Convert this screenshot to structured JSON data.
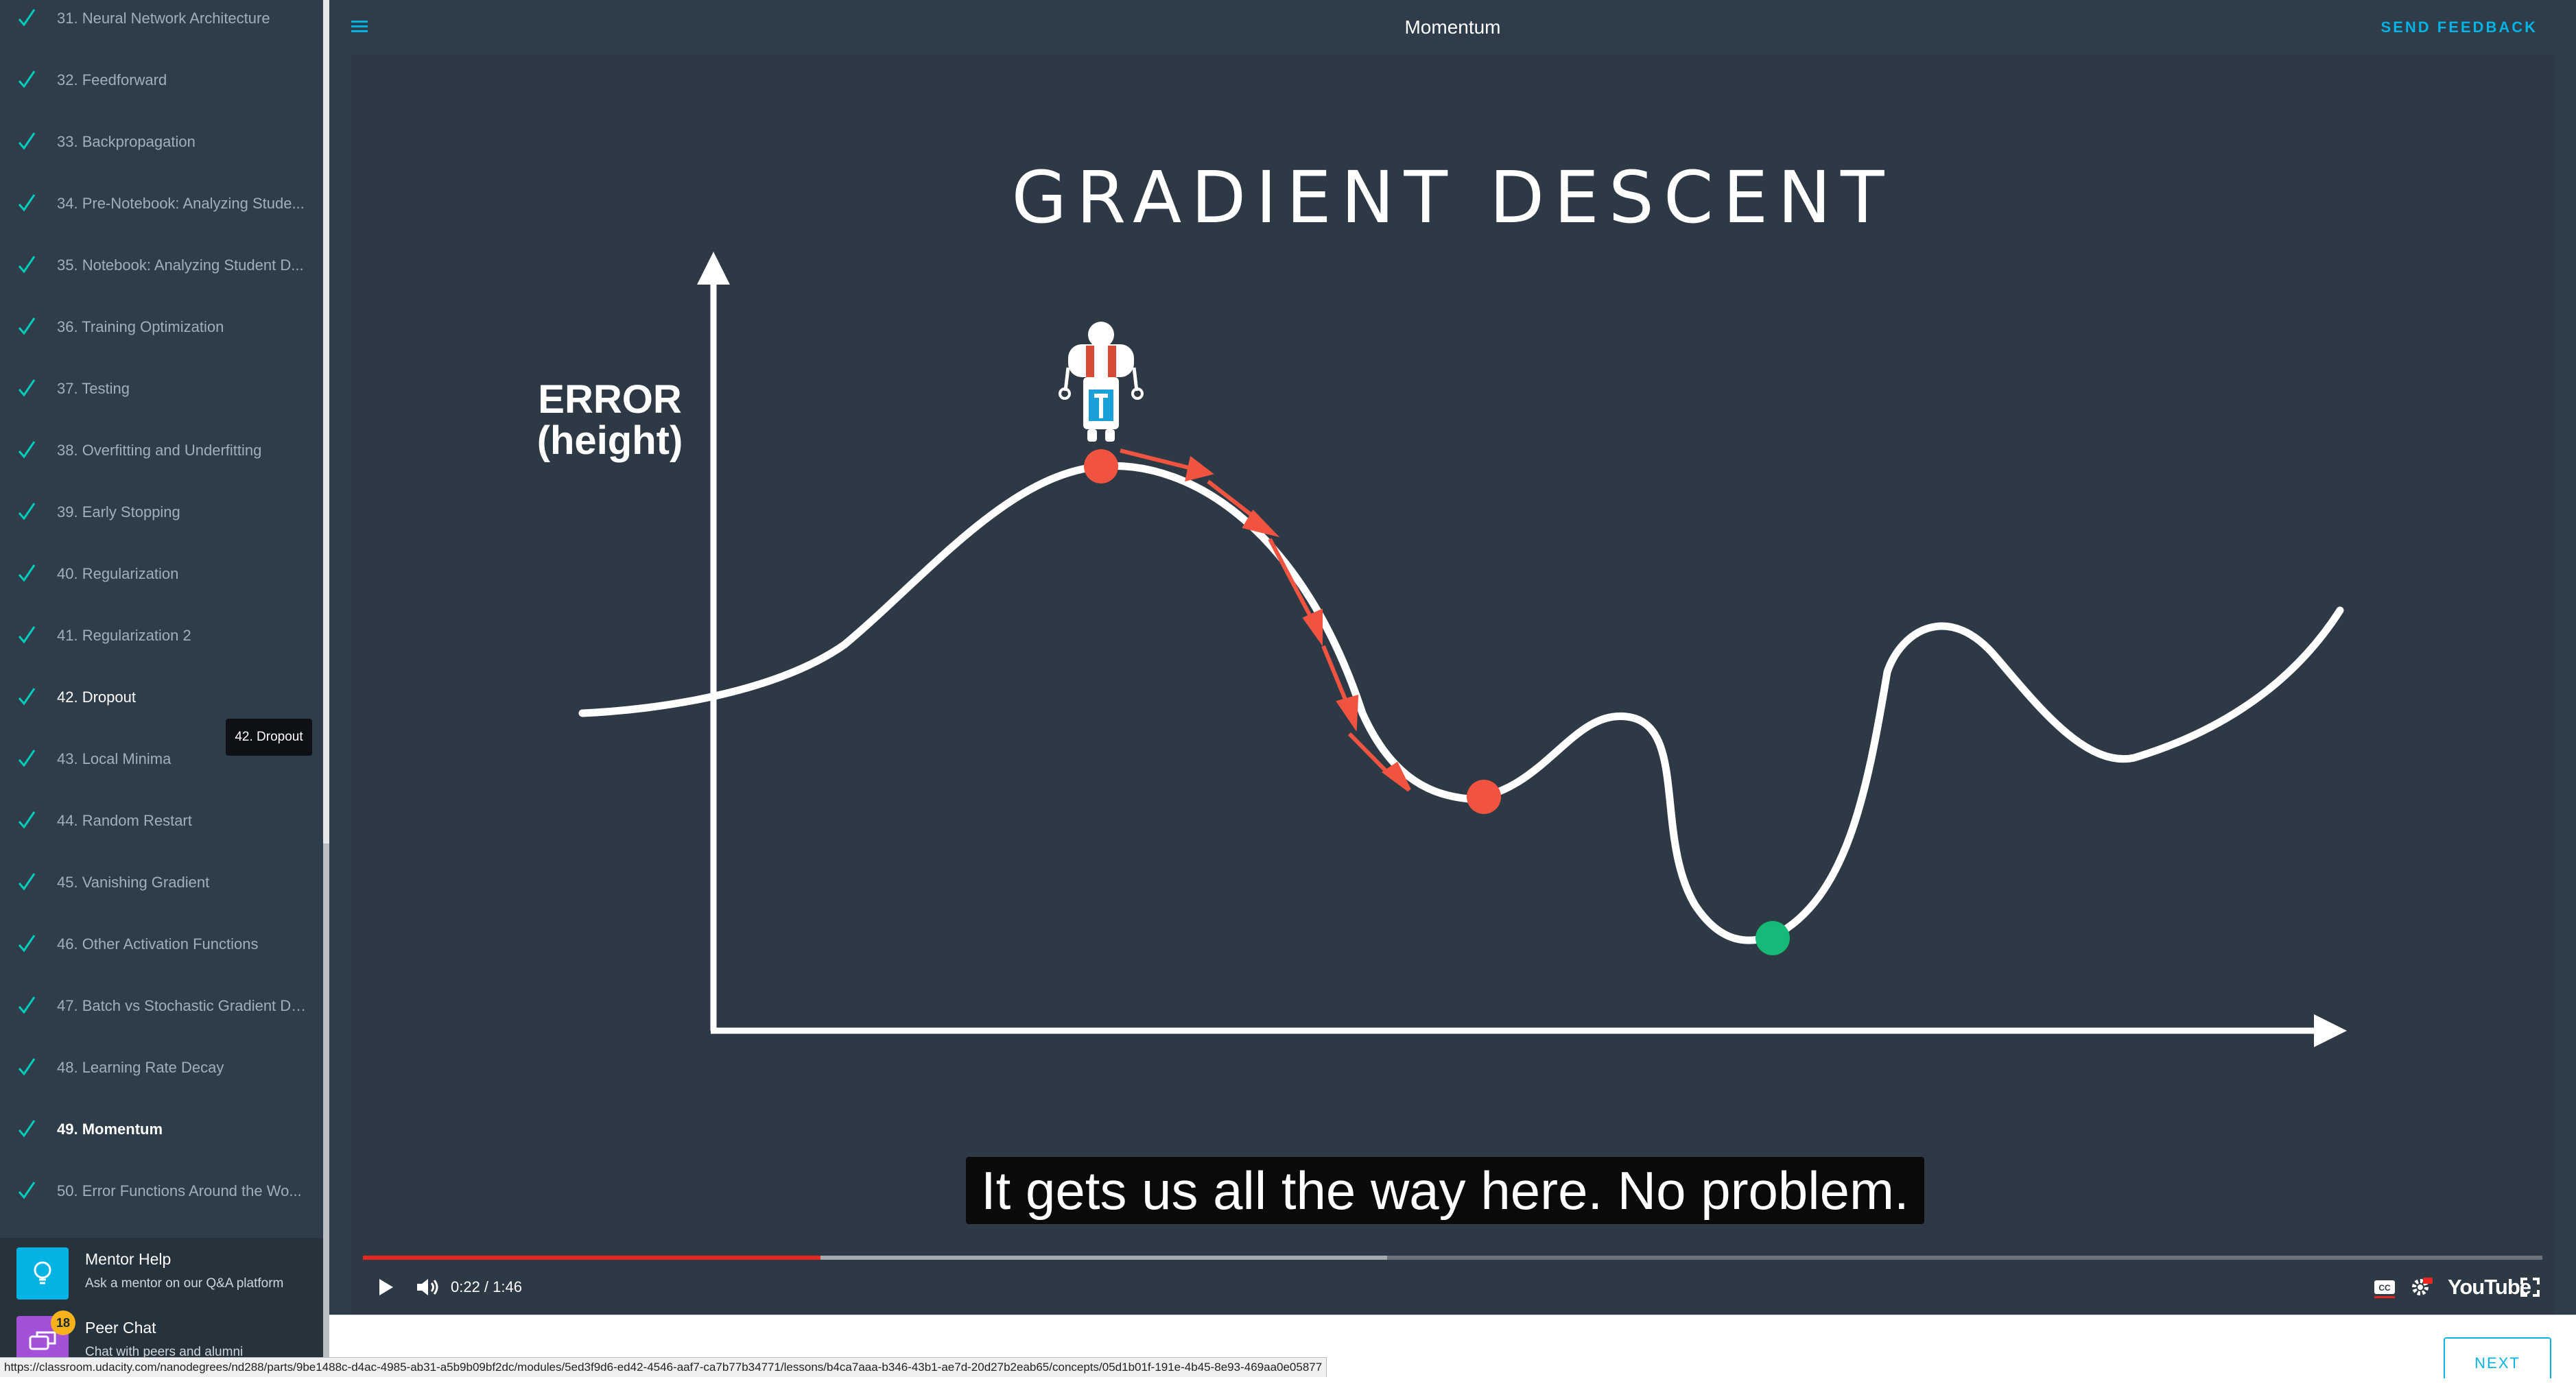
{
  "sidebar": {
    "lessons": [
      {
        "label": "31. Neural Network Architecture",
        "state": "done"
      },
      {
        "label": "32. Feedforward",
        "state": "done"
      },
      {
        "label": "33. Backpropagation",
        "state": "done"
      },
      {
        "label": "34. Pre-Notebook: Analyzing Stude...",
        "state": "done"
      },
      {
        "label": "35. Notebook: Analyzing Student D...",
        "state": "done"
      },
      {
        "label": "36. Training Optimization",
        "state": "done"
      },
      {
        "label": "37. Testing",
        "state": "done"
      },
      {
        "label": "38. Overfitting and Underfitting",
        "state": "done"
      },
      {
        "label": "39. Early Stopping",
        "state": "done"
      },
      {
        "label": "40. Regularization",
        "state": "done"
      },
      {
        "label": "41. Regularization 2",
        "state": "done"
      },
      {
        "label": "42. Dropout",
        "state": "hover"
      },
      {
        "label": "43. Local Minima",
        "state": "done"
      },
      {
        "label": "44. Random Restart",
        "state": "done"
      },
      {
        "label": "45. Vanishing Gradient",
        "state": "done"
      },
      {
        "label": "46. Other Activation Functions",
        "state": "done"
      },
      {
        "label": "47. Batch vs Stochastic Gradient De...",
        "state": "done"
      },
      {
        "label": "48. Learning Rate Decay",
        "state": "done"
      },
      {
        "label": "49. Momentum",
        "state": "active"
      },
      {
        "label": "50. Error Functions Around the Wo...",
        "state": "done"
      }
    ],
    "tooltip": "42. Dropout",
    "mentor_help": {
      "title": "Mentor Help",
      "subtitle": "Ask a mentor on our Q&A platform"
    },
    "peer_chat": {
      "title": "Peer Chat",
      "subtitle": "Chat with peers and alumni",
      "badge": "18"
    }
  },
  "header": {
    "title": "Momentum",
    "feedback_label": "SEND FEEDBACK"
  },
  "video": {
    "slide_title": "GRADIENT DESCENT",
    "y_axis_label_line1": "ERROR",
    "y_axis_label_line2": "(height)",
    "caption": "It gets us all the way here. No problem.",
    "time": "0:22 / 1:46",
    "played_fraction": 0.21,
    "buffered_fraction": 0.47,
    "youtube_label": "YouTube"
  },
  "footer": {
    "next_label": "NEXT",
    "status_url": "https://classroom.udacity.com/nanodegrees/nd288/parts/9be1488c-d4ac-4985-ab31-a5b9b09bf2dc/modules/5ed3f9d6-ed42-4546-aaf7-ca7b77b34771/lessons/b4ca7aaa-b346-43b1-ae7d-20d27b2eab65/concepts/05d1b01f-191e-4b45-8e93-469aa0e05877"
  },
  "colors": {
    "sidebar_bg": "#2e3d49",
    "check": "#02ccba",
    "accent": "#02b3e4",
    "curve_marker": "#f0533f",
    "global_min": "#17b978",
    "mentor_icon": "#02b3e4",
    "peer_icon": "#a451d9",
    "progress": "#e8271f"
  }
}
